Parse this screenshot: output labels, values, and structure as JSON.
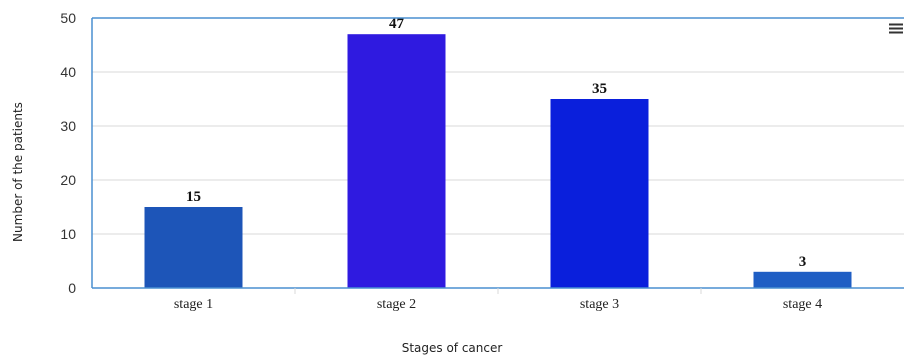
{
  "chart_data": {
    "type": "bar",
    "categories": [
      "stage 1",
      "stage 2",
      "stage 3",
      "stage 4"
    ],
    "values": [
      15,
      47,
      35,
      3
    ],
    "data_labels": [
      "15",
      "47",
      "35",
      "3"
    ],
    "bar_colors": [
      "#1d55b8",
      "#2f1ae0",
      "#0a1fdc",
      "#1f5ec4"
    ],
    "title": "",
    "xlabel": "Stages of cancer",
    "ylabel": "Number of the  patients",
    "ylim": [
      0,
      50
    ],
    "yticks": [
      "0",
      "10",
      "20",
      "30",
      "40",
      "50"
    ],
    "grid": true,
    "legend": "none"
  },
  "menu_icon": "hamburger-menu-icon",
  "colors": {
    "axis_line": "#4a8fd0",
    "grid": "#d9d9d9"
  }
}
